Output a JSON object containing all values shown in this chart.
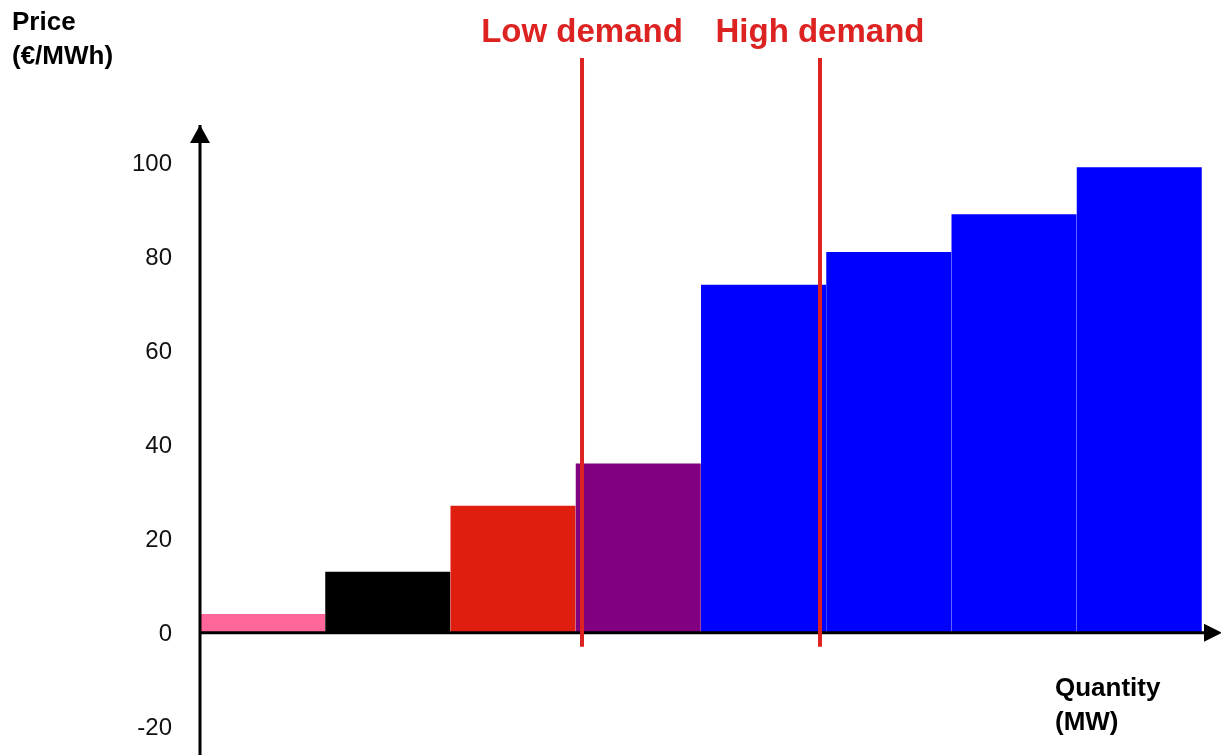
{
  "chart_data": {
    "type": "bar",
    "xlabel": "Quantity\n(MW)",
    "ylabel": "Price\n(€/MWh)",
    "categories": [
      null,
      null,
      null,
      null,
      null,
      null,
      null,
      null
    ],
    "values": [
      4,
      13,
      27,
      36,
      74,
      81,
      89,
      99
    ],
    "colors": [
      "#ff6699",
      "#000000",
      "#e01e10",
      "#800080",
      "#0000ff",
      "#0000ff",
      "#0000ff",
      "#0000ff"
    ],
    "ylim": [
      -26,
      108
    ],
    "yticks": [
      -20,
      0,
      20,
      40,
      60,
      80,
      100
    ],
    "tick_labels": "y",
    "annotations": [
      "Low demand",
      "High demand"
    ]
  }
}
